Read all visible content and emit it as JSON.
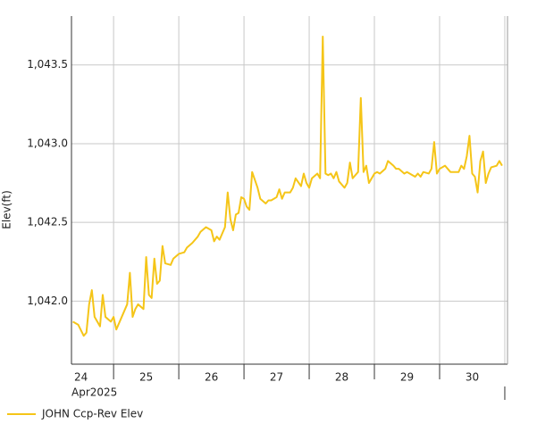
{
  "chart_data": {
    "type": "line",
    "y_label": "Elev(ft)",
    "x_sublabel": "Apr2025",
    "xlim": [
      "2025-04-24T08:30",
      "2025-05-01T01:00"
    ],
    "xticks": [
      {
        "value": "2025-04-24",
        "label": "24"
      },
      {
        "value": "2025-04-25",
        "label": "25"
      },
      {
        "value": "2025-04-26",
        "label": "26"
      },
      {
        "value": "2025-04-27",
        "label": "27"
      },
      {
        "value": "2025-04-28",
        "label": "28"
      },
      {
        "value": "2025-04-29",
        "label": "29"
      },
      {
        "value": "2025-04-30",
        "label": "30"
      }
    ],
    "ylim": [
      1041.6,
      1043.81
    ],
    "yticks": [
      {
        "value": 1042,
        "label": "1,042.0"
      },
      {
        "value": 1042.5,
        "label": "1,042.5"
      },
      {
        "value": 1043,
        "label": "1,043.0"
      },
      {
        "value": 1043.5,
        "label": "1,043.5"
      }
    ],
    "grid": true,
    "legend": "bottom-left",
    "x": [
      "2025-04-24T09:00",
      "2025-04-24T11:00",
      "2025-04-24T13:00",
      "2025-04-24T14:00",
      "2025-04-24T15:00",
      "2025-04-24T16:00",
      "2025-04-24T17:00",
      "2025-04-24T19:00",
      "2025-04-24T20:00",
      "2025-04-24T21:00",
      "2025-04-24T23:00",
      "2025-04-25T00:00",
      "2025-04-25T01:00",
      "2025-04-25T03:00",
      "2025-04-25T05:00",
      "2025-04-25T06:00",
      "2025-04-25T07:00",
      "2025-04-25T08:00",
      "2025-04-25T09:00",
      "2025-04-25T11:00",
      "2025-04-25T12:00",
      "2025-04-25T13:00",
      "2025-04-25T14:00",
      "2025-04-25T15:00",
      "2025-04-25T16:00",
      "2025-04-25T17:00",
      "2025-04-25T18:00",
      "2025-04-25T19:00",
      "2025-04-25T21:00",
      "2025-04-25T22:00",
      "2025-04-26T00:00",
      "2025-04-26T02:00",
      "2025-04-26T03:00",
      "2025-04-26T05:00",
      "2025-04-26T07:00",
      "2025-04-26T08:00",
      "2025-04-26T10:00",
      "2025-04-26T12:00",
      "2025-04-26T13:00",
      "2025-04-26T14:00",
      "2025-04-26T15:00",
      "2025-04-26T17:00",
      "2025-04-26T18:00",
      "2025-04-26T19:00",
      "2025-04-26T20:00",
      "2025-04-26T21:00",
      "2025-04-26T22:00",
      "2025-04-26T23:00",
      "2025-04-27T00:00",
      "2025-04-27T01:00",
      "2025-04-27T02:00",
      "2025-04-27T03:00",
      "2025-04-27T05:00",
      "2025-04-27T06:00",
      "2025-04-27T08:00",
      "2025-04-27T09:00",
      "2025-04-27T10:00",
      "2025-04-27T12:00",
      "2025-04-27T13:00",
      "2025-04-27T14:00",
      "2025-04-27T15:00",
      "2025-04-27T17:00",
      "2025-04-27T18:00",
      "2025-04-27T19:00",
      "2025-04-27T21:00",
      "2025-04-27T22:00",
      "2025-04-27T23:00",
      "2025-04-28T00:00",
      "2025-04-28T01:00",
      "2025-04-28T03:00",
      "2025-04-28T04:00",
      "2025-04-28T05:00",
      "2025-04-28T06:00",
      "2025-04-28T07:00",
      "2025-04-28T08:00",
      "2025-04-28T09:00",
      "2025-04-28T10:00",
      "2025-04-28T11:00",
      "2025-04-28T13:00",
      "2025-04-28T14:00",
      "2025-04-28T15:00",
      "2025-04-28T16:00",
      "2025-04-28T18:00",
      "2025-04-28T19:00",
      "2025-04-28T20:00",
      "2025-04-28T21:00",
      "2025-04-28T22:00",
      "2025-04-28T23:00",
      "2025-04-29T00:00",
      "2025-04-29T01:00",
      "2025-04-29T02:00",
      "2025-04-29T04:00",
      "2025-04-29T05:00",
      "2025-04-29T07:00",
      "2025-04-29T08:00",
      "2025-04-29T09:00",
      "2025-04-29T11:00",
      "2025-04-29T12:00",
      "2025-04-29T13:00",
      "2025-04-29T15:00",
      "2025-04-29T16:00",
      "2025-04-29T17:00",
      "2025-04-29T18:00",
      "2025-04-29T20:00",
      "2025-04-29T21:00",
      "2025-04-29T22:00",
      "2025-04-29T23:00",
      "2025-04-30T00:00",
      "2025-04-30T02:00",
      "2025-04-30T03:00",
      "2025-04-30T04:00",
      "2025-04-30T05:00",
      "2025-04-30T07:00",
      "2025-04-30T08:00",
      "2025-04-30T09:00",
      "2025-04-30T10:00",
      "2025-04-30T11:00",
      "2025-04-30T12:00",
      "2025-04-30T13:00",
      "2025-04-30T14:00",
      "2025-04-30T15:00",
      "2025-04-30T16:00",
      "2025-04-30T17:00",
      "2025-04-30T18:00",
      "2025-04-30T19:00",
      "2025-04-30T21:00",
      "2025-04-30T22:00",
      "2025-04-30T23:00"
    ],
    "series": [
      {
        "name": "JOHN Ccp-Rev Elev",
        "color": "#f5c518",
        "values": [
          1041.87,
          1041.85,
          1041.78,
          1041.8,
          1041.98,
          1042.07,
          1041.9,
          1041.84,
          1042.04,
          1041.9,
          1041.87,
          1041.9,
          1041.82,
          1041.9,
          1041.98,
          1042.18,
          1041.9,
          1041.95,
          1041.98,
          1041.95,
          1042.28,
          1042.04,
          1042.02,
          1042.27,
          1042.11,
          1042.13,
          1042.35,
          1042.24,
          1042.23,
          1042.27,
          1042.3,
          1042.31,
          1042.34,
          1042.37,
          1042.41,
          1042.44,
          1042.47,
          1042.45,
          1042.38,
          1042.41,
          1042.39,
          1042.47,
          1042.69,
          1042.52,
          1042.45,
          1042.55,
          1042.56,
          1042.66,
          1042.65,
          1042.6,
          1042.58,
          1042.82,
          1042.72,
          1042.65,
          1042.62,
          1042.64,
          1042.64,
          1042.66,
          1042.71,
          1042.65,
          1042.69,
          1042.69,
          1042.72,
          1042.78,
          1042.73,
          1042.81,
          1042.75,
          1042.72,
          1042.78,
          1042.81,
          1042.78,
          1043.68,
          1042.81,
          1042.8,
          1042.81,
          1042.78,
          1042.82,
          1042.76,
          1042.72,
          1042.75,
          1042.88,
          1042.78,
          1042.82,
          1043.29,
          1042.82,
          1042.86,
          1042.75,
          1042.78,
          1042.81,
          1042.82,
          1042.81,
          1042.84,
          1042.89,
          1042.86,
          1042.84,
          1042.84,
          1042.81,
          1042.82,
          1042.81,
          1042.79,
          1042.81,
          1042.79,
          1042.82,
          1042.81,
          1042.84,
          1043.01,
          1042.81,
          1042.84,
          1042.86,
          1042.84,
          1042.82,
          1042.82,
          1042.82,
          1042.86,
          1042.84,
          1042.92,
          1043.05,
          1042.81,
          1042.79,
          1042.69,
          1042.89,
          1042.95,
          1042.75,
          1042.81,
          1042.85,
          1042.86,
          1042.89,
          1042.86
        ]
      }
    ]
  }
}
